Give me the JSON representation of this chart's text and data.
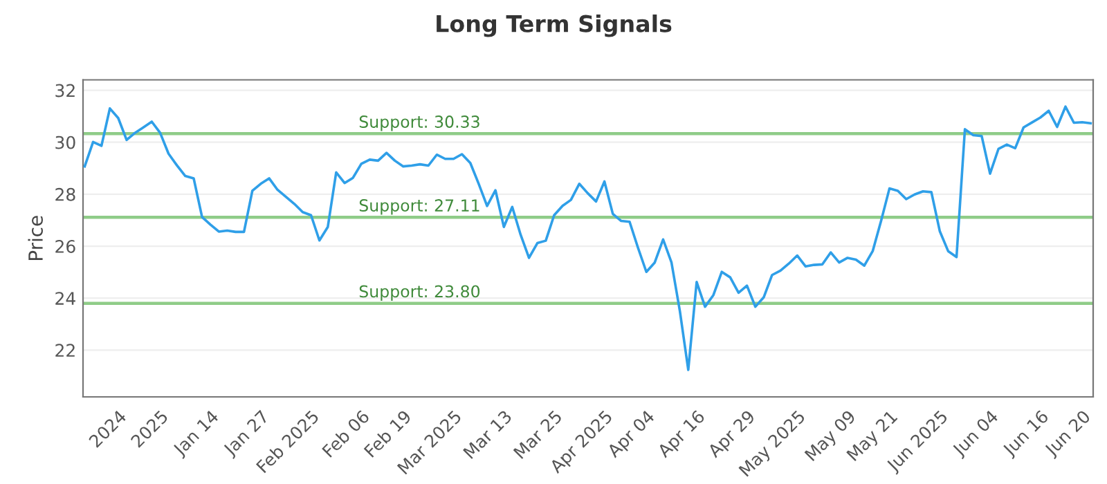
{
  "chart_data": {
    "type": "line",
    "title": "Long Term Signals",
    "ylabel": "Price",
    "categories": [
      null,
      null,
      null,
      null,
      "2024",
      null,
      null,
      null,
      null,
      "2025",
      null,
      null,
      null,
      null,
      null,
      "Jan 14",
      null,
      null,
      null,
      null,
      null,
      "Jan 27",
      null,
      null,
      null,
      null,
      null,
      "Feb 2025",
      null,
      null,
      null,
      null,
      null,
      "Feb 06",
      null,
      null,
      null,
      null,
      "Feb 19",
      null,
      null,
      null,
      null,
      null,
      "Mar 2025",
      null,
      null,
      null,
      null,
      null,
      "Mar 13",
      null,
      null,
      null,
      null,
      null,
      "Mar 25",
      null,
      null,
      null,
      null,
      null,
      "Apr 2025",
      null,
      null,
      null,
      null,
      "Apr 04",
      null,
      null,
      null,
      null,
      null,
      "Apr 16",
      null,
      null,
      null,
      null,
      null,
      "Apr 29",
      null,
      null,
      null,
      null,
      null,
      "May 2025",
      null,
      null,
      null,
      null,
      null,
      "May 09",
      null,
      null,
      null,
      null,
      "May 21",
      null,
      null,
      null,
      null,
      null,
      "Jun 2025",
      null,
      null,
      null,
      null,
      null,
      "Jun 04",
      null,
      null,
      null,
      null,
      null,
      "Jun 16",
      null,
      null,
      null,
      null,
      "Jun 20",
      null
    ],
    "series": [
      {
        "color": "#2f9fe8",
        "values": [
          29.07,
          30.01,
          29.86,
          31.3,
          30.93,
          30.09,
          30.36,
          30.57,
          30.79,
          30.36,
          29.56,
          29.11,
          28.7,
          28.61,
          27.12,
          26.83,
          26.56,
          26.6,
          26.55,
          26.55,
          28.13,
          28.4,
          28.61,
          28.17,
          27.9,
          27.63,
          27.31,
          27.19,
          26.22,
          26.74,
          28.84,
          28.43,
          28.63,
          29.17,
          29.33,
          29.29,
          29.59,
          29.29,
          29.07,
          29.1,
          29.15,
          29.1,
          29.52,
          29.36,
          29.36,
          29.54,
          29.2,
          28.4,
          27.55,
          28.15,
          26.74,
          27.51,
          26.44,
          25.55,
          26.12,
          26.21,
          27.19,
          27.55,
          27.78,
          28.4,
          28.04,
          27.72,
          28.49,
          27.24,
          26.97,
          26.94,
          25.94,
          25.01,
          25.37,
          26.26,
          25.37,
          23.5,
          21.24,
          24.62,
          23.67,
          24.12,
          25.01,
          24.8,
          24.21,
          24.48,
          23.67,
          24.03,
          24.89,
          25.06,
          25.33,
          25.64,
          25.22,
          25.28,
          25.3,
          25.76,
          25.37,
          25.55,
          25.48,
          25.25,
          25.81,
          26.97,
          28.22,
          28.13,
          27.81,
          27.99,
          28.11,
          28.08,
          26.58,
          25.81,
          25.58,
          30.5,
          30.27,
          30.24,
          28.79,
          29.74,
          29.91,
          29.77,
          30.57,
          30.76,
          30.95,
          31.21,
          30.59,
          31.37,
          30.75,
          30.77,
          30.73
        ]
      }
    ],
    "ylim": [
      20.2,
      32.4
    ],
    "yticks": [
      22,
      24,
      26,
      28,
      30,
      32
    ],
    "ref_lines": [
      {
        "axis": "y",
        "value": 30.33,
        "label": "Support: 30.33",
        "color": "#8fcc88"
      },
      {
        "axis": "y",
        "value": 27.11,
        "label": "Support: 27.11",
        "color": "#8fcc88"
      },
      {
        "axis": "y",
        "value": 23.8,
        "label": "Support: 23.80",
        "color": "#8fcc88"
      }
    ],
    "grid": "y",
    "marker": "none",
    "line_style": "solid"
  }
}
